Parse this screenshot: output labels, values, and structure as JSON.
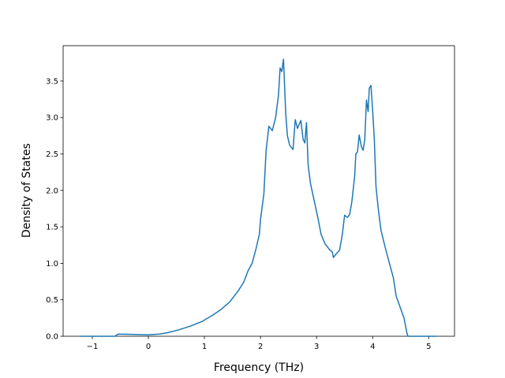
{
  "chart_data": {
    "type": "line",
    "xlabel": "Frequency (THz)",
    "ylabel": "Density of States",
    "x": [
      -1.21,
      -0.6,
      -0.54,
      -0.3,
      0,
      0.2,
      0.35,
      0.55,
      0.75,
      0.95,
      1.15,
      1.3,
      1.45,
      1.6,
      1.7,
      1.78,
      1.85,
      1.92,
      1.98,
      2.0,
      2.06,
      2.1,
      2.15,
      2.21,
      2.27,
      2.32,
      2.35,
      2.38,
      2.41,
      2.45,
      2.48,
      2.52,
      2.58,
      2.62,
      2.66,
      2.72,
      2.76,
      2.79,
      2.82,
      2.85,
      2.89,
      2.96,
      3.03,
      3.08,
      3.15,
      3.24,
      3.28,
      3.3,
      3.35,
      3.41,
      3.46,
      3.5,
      3.55,
      3.59,
      3.63,
      3.68,
      3.7,
      3.73,
      3.76,
      3.8,
      3.83,
      3.86,
      3.89,
      3.92,
      3.94,
      3.97,
      4.0,
      4.03,
      4.06,
      4.1,
      4.15,
      4.23,
      4.3,
      4.37,
      4.42,
      4.49,
      4.56,
      4.61,
      4.63,
      5.14
    ],
    "series": [
      {
        "color": "#1f77b4",
        "values": [
          0,
          0,
          0.03,
          0.025,
          0.02,
          0.03,
          0.05,
          0.09,
          0.14,
          0.2,
          0.29,
          0.37,
          0.47,
          0.62,
          0.74,
          0.9,
          1.0,
          1.2,
          1.4,
          1.6,
          1.95,
          2.55,
          2.88,
          2.82,
          3.0,
          3.3,
          3.68,
          3.63,
          3.8,
          3.05,
          2.75,
          2.62,
          2.56,
          2.97,
          2.85,
          2.96,
          2.7,
          2.65,
          2.93,
          2.35,
          2.1,
          1.85,
          1.6,
          1.4,
          1.27,
          1.18,
          1.16,
          1.08,
          1.13,
          1.18,
          1.4,
          1.66,
          1.63,
          1.67,
          1.85,
          2.2,
          2.5,
          2.53,
          2.76,
          2.6,
          2.55,
          2.7,
          3.24,
          3.08,
          3.4,
          3.44,
          3.1,
          2.7,
          2.05,
          1.75,
          1.45,
          1.2,
          1.0,
          0.8,
          0.55,
          0.4,
          0.25,
          0.05,
          0,
          0
        ]
      }
    ],
    "xlim": [
      -1.52,
      5.46
    ],
    "ylim": [
      0,
      3.985
    ],
    "xticks": [
      {
        "value": -1,
        "label": "−1"
      },
      0,
      1,
      2,
      3,
      4,
      5
    ],
    "yticks": [
      {
        "value": 0,
        "label": "0.0"
      },
      {
        "value": 0.5,
        "label": "0.5"
      },
      {
        "value": 1,
        "label": "1.0"
      },
      {
        "value": 1.5,
        "label": "1.5"
      },
      {
        "value": 2,
        "label": "2.0"
      },
      {
        "value": 2.5,
        "label": "2.5"
      },
      {
        "value": 3,
        "label": "3.0"
      },
      {
        "value": 3.5,
        "label": "3.5"
      }
    ]
  }
}
